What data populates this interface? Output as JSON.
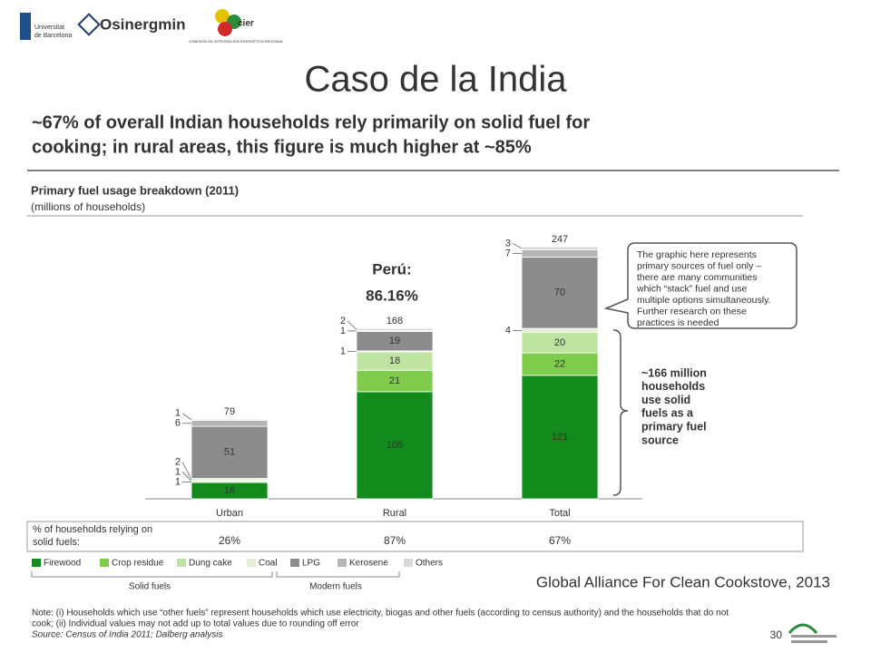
{
  "logos": {
    "ub_line1": "Universitat",
    "ub_line2": "de Barcelona",
    "osinergmin": "Osinergmin",
    "cier": "cier",
    "cier_caption": "COMISIÓN DE INTEGRACIÓN ENERGÉTICA REGIONAL"
  },
  "slide_title": "Caso de la India",
  "headline": [
    "~67% of overall Indian households rely primarily on solid fuel for",
    "cooking; in rural areas, this figure is much higher at ~85%"
  ],
  "chart_data": {
    "type": "bar",
    "stacked": true,
    "title": "Primary fuel usage breakdown (2011)",
    "subtitle": "(millions of households)",
    "categories": [
      "Urban",
      "Rural",
      "Total"
    ],
    "series": [
      {
        "name": "Firewood",
        "color": "#138a1c",
        "values": [
          16,
          105,
          121
        ]
      },
      {
        "name": "Crop residue",
        "color": "#7fcc4c",
        "values": [
          1,
          21,
          22
        ]
      },
      {
        "name": "Dung cake",
        "color": "#bfe4a2",
        "values": [
          1,
          18,
          20
        ]
      },
      {
        "name": "Coal",
        "color": "#e3f0d6",
        "values": [
          2,
          1,
          4
        ]
      },
      {
        "name": "LPG",
        "color": "#8c8c8c",
        "values": [
          51,
          19,
          70
        ]
      },
      {
        "name": "Kerosene",
        "color": "#b5b5b5",
        "values": [
          6,
          1,
          7
        ]
      },
      {
        "name": "Others",
        "color": "#d9d9d9",
        "values": [
          1,
          2,
          3
        ]
      }
    ],
    "totals": [
      79,
      168,
      247
    ],
    "share_label": [
      "% of households relying on",
      "solid fuels:"
    ],
    "share_values": [
      "26%",
      "87%",
      "67%"
    ],
    "legend_groups": [
      "Solid fuels",
      "Modern fuels"
    ]
  },
  "peru_note": [
    "Perú:",
    "86.16%"
  ],
  "callout": [
    "The graphic here represents",
    "primary sources of fuel only –",
    "there are many communities",
    "which “stack” fuel and use",
    "multiple options simultaneously.",
    "Further research on these",
    "practices is needed"
  ],
  "bracket_note": [
    "~166 million",
    "households",
    "use solid",
    "fuels as a",
    "primary fuel",
    "source"
  ],
  "citation": "Global Alliance For Clean Cookstove, 2013",
  "note": [
    "Note: (i) Households which use “other fuels” represent households which use electricity, biogas and other fuels (according to census authority) and the households that do not",
    "cook; (ii) Individual values may not add up to total values due to rounding off  error",
    "Source: Census of India 2011; Dalberg analysis"
  ],
  "page_number": "30"
}
